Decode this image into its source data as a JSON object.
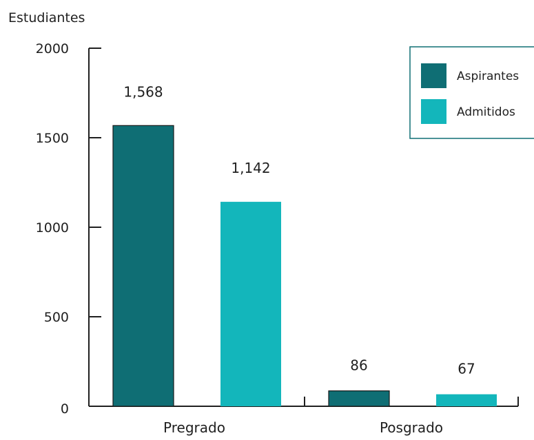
{
  "chart_data": {
    "type": "bar",
    "ylabel": "Estudiantes",
    "categories": [
      "Pregrado",
      "Posgrado"
    ],
    "series": [
      {
        "name": "Aspirantes",
        "values": [
          1568,
          86
        ],
        "labels": [
          "1,568",
          "86"
        ],
        "color": "#0f6e74"
      },
      {
        "name": "Admitidos",
        "values": [
          1142,
          67
        ],
        "labels": [
          "1,142",
          "67"
        ],
        "color": "#13b6bb"
      }
    ],
    "ylim": [
      0,
      2000
    ],
    "yticks": [
      0,
      500,
      1000,
      1500,
      2000
    ],
    "grid": false,
    "legend": "top-right",
    "colors": {
      "axis": "#1f1f1f",
      "legend_border": "#0f6e74",
      "bar_stroke": "#1a1a1a"
    }
  }
}
